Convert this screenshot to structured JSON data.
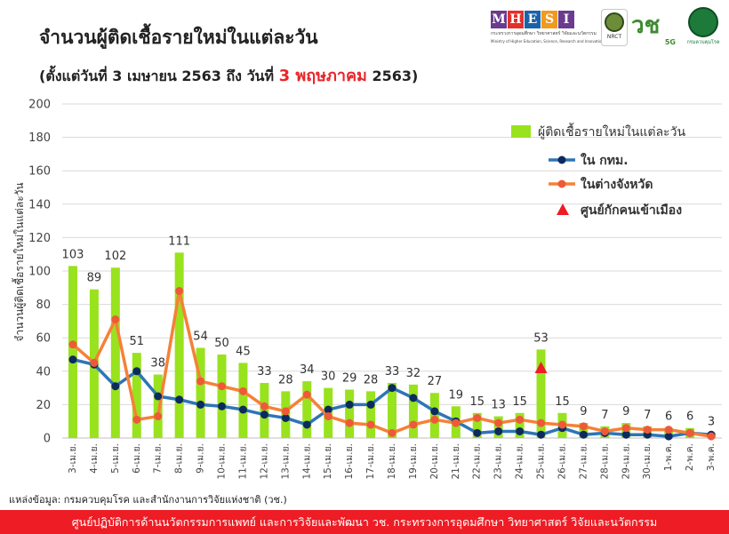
{
  "header": {
    "title": "จำนวนผู้ติดเชื้อรายใหม่ในแต่ละวัน",
    "subtitle_pre": "(ตั้งแต่วันที่ 3 เมษายน 2563 ถึง วันที่ ",
    "subtitle_highlight": "3 พฤษภาคม",
    "subtitle_post": " 2563)"
  },
  "logos": {
    "mhesi_letters": [
      "M",
      "H",
      "E",
      "S",
      "I"
    ],
    "mhesi_colors": [
      "#6a3b8f",
      "#e4302a",
      "#1b63a8",
      "#f29a1d",
      "#6a3b8f"
    ],
    "mhesi_caption": "กระทรวงการอุดมศึกษา วิทยาศาสตร์ วิจัยและนวัตกรรม",
    "mhesi_caption_en": "Ministry of Higher Education, Science, Research and Innovation",
    "nrct_label": "NRCT",
    "vor_chor_label": "วช",
    "fiveg_label": "5G",
    "ddc_label": "กรมควบคุมโรค"
  },
  "chart_data": {
    "type": "bar",
    "title": "",
    "ylabel": "จำนวนผู้ติดเชื้อรายใหม่ในแต่ละวัน",
    "xlabel": "",
    "ylim": [
      0,
      200
    ],
    "yticks": [
      0,
      20,
      40,
      60,
      80,
      100,
      120,
      140,
      160,
      180,
      200
    ],
    "grid": true,
    "legend_position": "top-right",
    "categories": [
      "3-เม.ย.",
      "4-เม.ย.",
      "5-เม.ย.",
      "6-เม.ย.",
      "7-เม.ย.",
      "8-เม.ย.",
      "9-เม.ย.",
      "10-เม.ย.",
      "11-เม.ย.",
      "12-เม.ย.",
      "13-เม.ย.",
      "14-เม.ย.",
      "15-เม.ย.",
      "16-เม.ย.",
      "17-เม.ย.",
      "18-เม.ย.",
      "19-เม.ย.",
      "20-เม.ย.",
      "21-เม.ย.",
      "22-เม.ย.",
      "23-เม.ย.",
      "24-เม.ย.",
      "25-เม.ย.",
      "26-เม.ย.",
      "27-เม.ย.",
      "28-เม.ย.",
      "29-เม.ย.",
      "30-เม.ย.",
      "1-พ.ค.",
      "2-พ.ค.",
      "3-พ.ค."
    ],
    "series": [
      {
        "name": "ผู้ติดเชื้อรายใหม่ในแต่ละวัน",
        "kind": "bar",
        "color": "#99e21e",
        "values": [
          103,
          89,
          102,
          51,
          38,
          111,
          54,
          50,
          45,
          33,
          28,
          34,
          30,
          29,
          28,
          33,
          32,
          27,
          19,
          15,
          13,
          15,
          53,
          15,
          9,
          7,
          9,
          7,
          6,
          6,
          3
        ]
      },
      {
        "name": "ใน กทม.",
        "kind": "line",
        "color": "#2e75b6",
        "marker_color": "#0d2a5e",
        "values": [
          47,
          44,
          31,
          40,
          25,
          23,
          20,
          19,
          17,
          14,
          12,
          8,
          17,
          20,
          20,
          30,
          24,
          16,
          10,
          3,
          4,
          4,
          2,
          6,
          2,
          3,
          2,
          2,
          1,
          3,
          2
        ]
      },
      {
        "name": "ในต่างจังหวัด",
        "kind": "line",
        "color": "#f58137",
        "marker_color": "#f0583a",
        "values": [
          56,
          45,
          71,
          11,
          13,
          88,
          34,
          31,
          28,
          19,
          16,
          26,
          13,
          9,
          8,
          3,
          8,
          11,
          9,
          12,
          9,
          11,
          9,
          8,
          7,
          4,
          6,
          5,
          5,
          3,
          1
        ]
      },
      {
        "name": "ศูนย์กักคนเข้าเมือง",
        "kind": "marker",
        "color": "#ee1c24",
        "points": [
          {
            "category": "25-เม.ย.",
            "value": 42
          }
        ]
      }
    ]
  },
  "source_note": "แหล่งข้อมูล: กรมควบคุมโรค และสำนักงานการวิจัยแห่งชาติ (วช.)",
  "footer_text": "ศูนย์ปฏิบัติการด้านนวัตกรรมการแพทย์ และการวิจัยและพัฒนา  วช.   กระทรวงการอุดมศึกษา วิทยาศาสตร์ วิจัยและนวัตกรรม"
}
